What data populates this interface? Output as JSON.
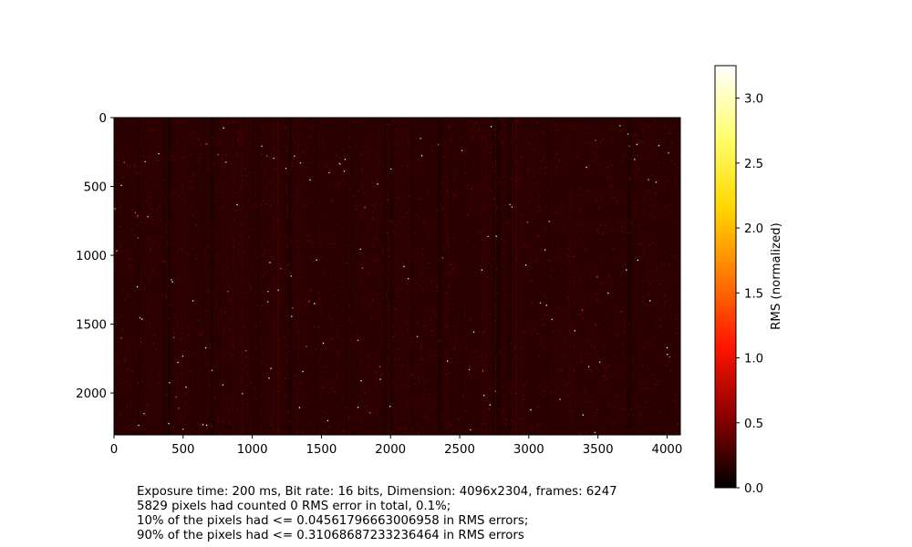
{
  "chart_data": {
    "type": "heatmap",
    "title": "",
    "xlabel": "",
    "ylabel": "",
    "dimension": {
      "width": 4096,
      "height": 2304
    },
    "xlim": [
      0,
      4096
    ],
    "ylim": [
      2304,
      0
    ],
    "x_ticks": [
      0,
      500,
      1000,
      1500,
      2000,
      2500,
      3000,
      3500,
      4000
    ],
    "y_ticks": [
      0,
      500,
      1000,
      1500,
      2000
    ],
    "colormap": "hot",
    "background_color": "#2a0000",
    "colorbar": {
      "label": "RMS (normalized)",
      "range": [
        0.0,
        3.25
      ],
      "ticks": [
        "0.0",
        "0.5",
        "1.0",
        "1.5",
        "2.0",
        "2.5",
        "3.0"
      ],
      "stops": [
        "#000000",
        "#8a0000",
        "#ff1400",
        "#ff7a00",
        "#ffd800",
        "#ffff70",
        "#ffffff"
      ]
    }
  },
  "caption": {
    "lines": [
      "Exposure time: 200 ms, Bit rate: 16 bits, Dimension: 4096x2304, frames: 6247",
      "5829 pixels had counted 0 RMS error in total, 0.1%;",
      "10% of the pixels had <= 0.04561796663006958 in RMS errors;",
      "90% of the pixels had <= 0.31068687233236464 in RMS errors"
    ]
  }
}
